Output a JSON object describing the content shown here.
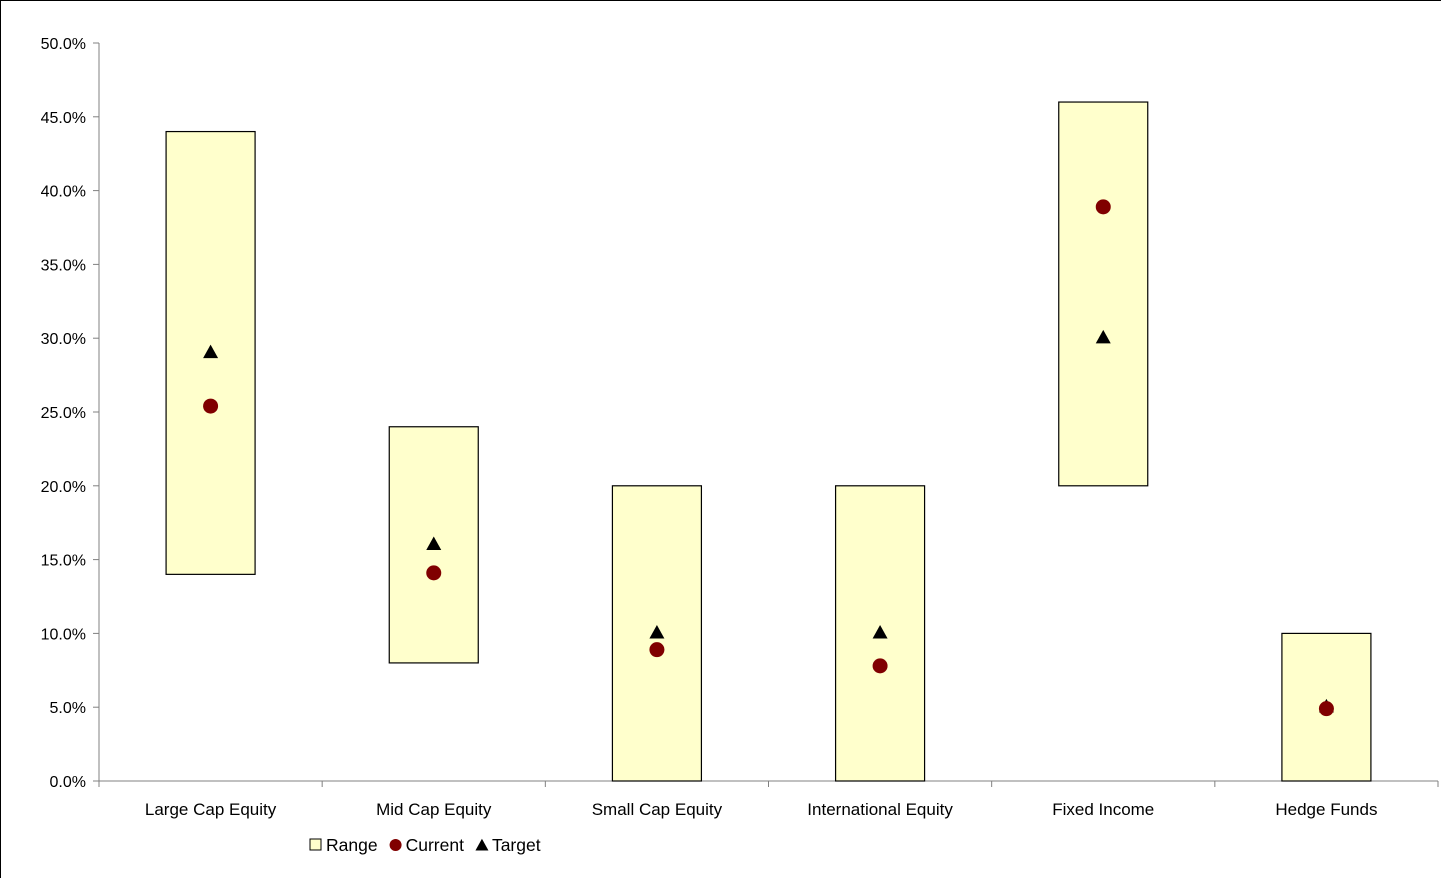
{
  "chart_data": {
    "type": "range",
    "categories": [
      "Large Cap Equity",
      "Mid Cap Equity",
      "Small Cap Equity",
      "International Equity",
      "Fixed Income",
      "Hedge Funds"
    ],
    "range": [
      [
        14,
        44
      ],
      [
        8,
        24
      ],
      [
        0,
        20
      ],
      [
        0,
        20
      ],
      [
        20,
        46
      ],
      [
        0,
        10
      ]
    ],
    "series": [
      {
        "name": "Current",
        "marker": "circle",
        "values": [
          25.4,
          14.1,
          8.9,
          7.8,
          38.9,
          4.9
        ]
      },
      {
        "name": "Target",
        "marker": "triangle",
        "values": [
          29,
          16,
          10,
          10,
          30,
          5
        ]
      }
    ],
    "legend": [
      {
        "label": "Range",
        "marker": "square"
      },
      {
        "label": "Current",
        "marker": "circle"
      },
      {
        "label": "Target",
        "marker": "triangle"
      }
    ],
    "ylim": [
      0,
      50
    ],
    "yticks": [
      "0.0%",
      "5.0%",
      "10.0%",
      "15.0%",
      "20.0%",
      "25.0%",
      "30.0%",
      "35.0%",
      "40.0%",
      "45.0%",
      "50.0%"
    ],
    "legend_position": "bottom",
    "colors": {
      "range_fill": "#ffffcc",
      "range_stroke": "#000000",
      "current": "#800000",
      "target": "#000000",
      "axis": "#808080"
    }
  }
}
